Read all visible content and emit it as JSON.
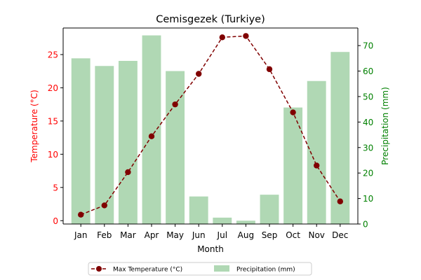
{
  "chart_data": {
    "type": "bar",
    "title": "Cemisgezek (Turkiye)",
    "xlabel": "Month",
    "categories": [
      "Jan",
      "Feb",
      "Mar",
      "Apr",
      "May",
      "Jun",
      "Jul",
      "Aug",
      "Sep",
      "Oct",
      "Nov",
      "Dec"
    ],
    "left_axis": {
      "label": "Temperature (°C)",
      "color": "#ff0000",
      "ylim": [
        -0.5,
        29
      ],
      "ticks": [
        0,
        5,
        10,
        15,
        20,
        25
      ]
    },
    "right_axis": {
      "label": "Precipitation (mm)",
      "color": "#008000",
      "ylim": [
        0,
        76.9
      ],
      "ticks": [
        0,
        10,
        20,
        30,
        40,
        50,
        60,
        70
      ]
    },
    "series": [
      {
        "name": "Max Temperature (°C)",
        "type": "line",
        "axis": "left",
        "color": "#800000",
        "line_style": "dashed",
        "marker": "circle",
        "values": [
          0.9,
          2.3,
          7.3,
          12.7,
          17.5,
          22.1,
          27.6,
          27.8,
          22.8,
          16.3,
          8.3,
          2.9
        ]
      },
      {
        "name": "Precipitation (mm)",
        "type": "bar",
        "axis": "right",
        "color": "#b0d8b4",
        "values": [
          65,
          62,
          64,
          74,
          60,
          10.8,
          2.5,
          1.3,
          11.5,
          45.7,
          56.1,
          67.5
        ]
      }
    ],
    "legend": {
      "placement": "bottom-center",
      "entries": [
        "Max Temperature (°C)",
        "Precipitation (mm)"
      ]
    },
    "grid": false
  }
}
